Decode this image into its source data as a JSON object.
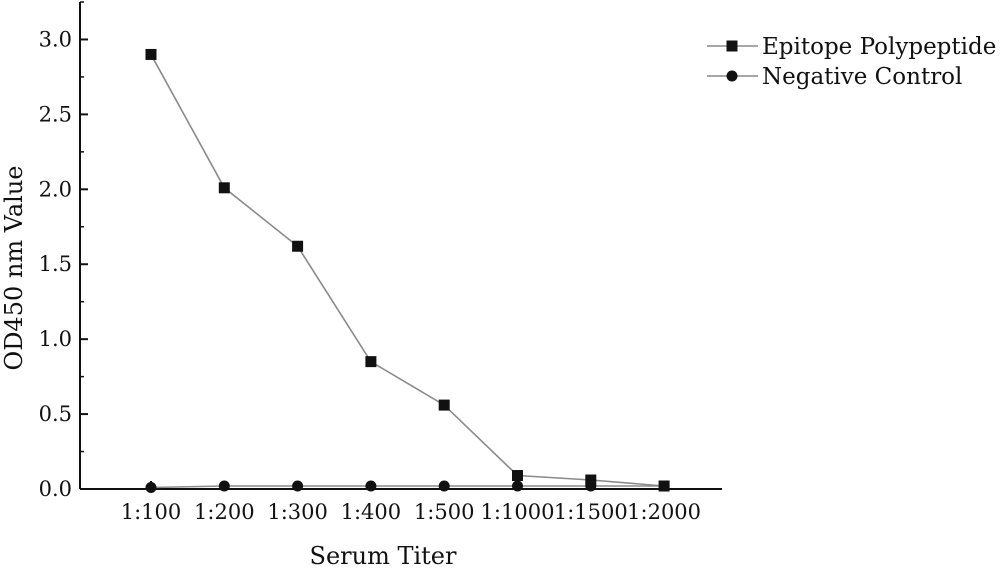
{
  "chart_data": {
    "type": "line",
    "xlabel": "Serum Titer",
    "ylabel": "OD450 nm Value",
    "categories": [
      "1:100",
      "1:200",
      "1:300",
      "1:400",
      "1:500",
      "1:1000",
      "1:1500",
      "1:2000"
    ],
    "ylim": [
      0,
      3.25
    ],
    "yticks": [
      "0.0",
      "0.5",
      "1.0",
      "1.5",
      "2.0",
      "2.5",
      "3.0"
    ],
    "ytick_values": [
      0,
      0.5,
      1.0,
      1.5,
      2.0,
      2.5,
      3.0
    ],
    "grid": false,
    "legend_position": "top-right",
    "series": [
      {
        "name": "Epitope Polypeptide",
        "marker": "square",
        "color": "#111111",
        "line_color": "#8a8a8a",
        "values": [
          2.9,
          2.01,
          1.62,
          0.85,
          0.56,
          0.09,
          0.06,
          0.02
        ]
      },
      {
        "name": "Negative Control",
        "marker": "circle",
        "color": "#111111",
        "line_color": "#8a8a8a",
        "values": [
          0.01,
          0.02,
          0.02,
          0.02,
          0.02,
          0.02,
          0.02,
          0.02
        ]
      }
    ]
  }
}
